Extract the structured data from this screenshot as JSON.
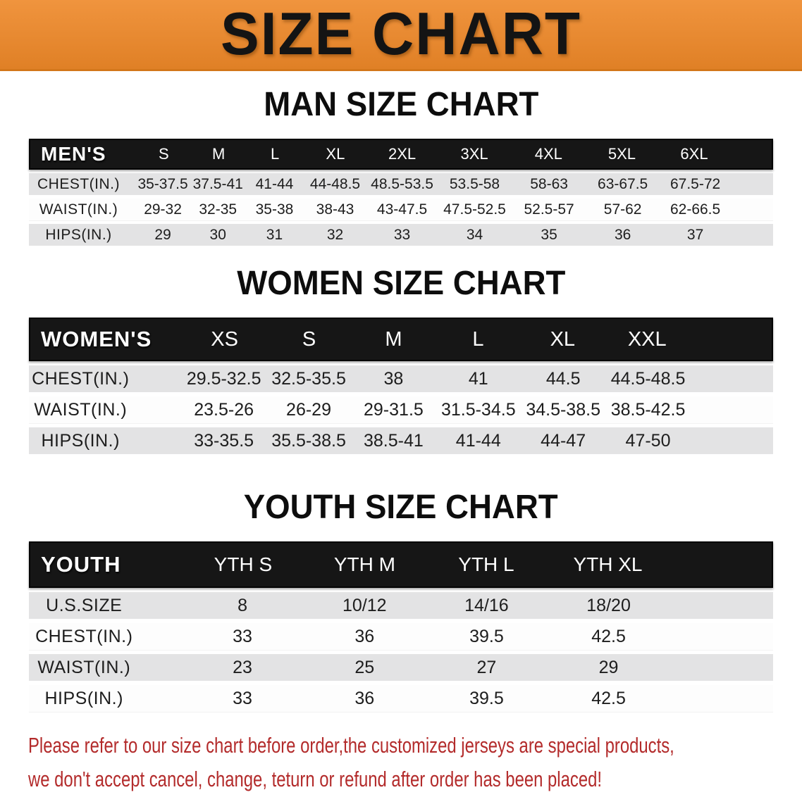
{
  "banner": {
    "title": "SIZE CHART"
  },
  "colors": {
    "banner_bg": "#ee8828",
    "banner_text": "#141414",
    "table_header_bg": "#161616",
    "table_header_text": "#ffffff",
    "row_alt_bg": "#e3e3e4",
    "row_text": "#1d1d1d",
    "disclaimer_text": "#b32b2b"
  },
  "chart_data": [
    {
      "type": "table",
      "title": "MAN SIZE CHART",
      "corner_label": "MEN'S",
      "columns": [
        "S",
        "M",
        "L",
        "XL",
        "2XL",
        "3XL",
        "4XL",
        "5XL",
        "6XL"
      ],
      "rows": [
        {
          "label": "CHEST(IN.)",
          "values": [
            "35-37.5",
            "37.5-41",
            "41-44",
            "44-48.5",
            "48.5-53.5",
            "53.5-58",
            "58-63",
            "63-67.5",
            "67.5-72"
          ]
        },
        {
          "label": "WAIST(IN.)",
          "values": [
            "29-32",
            "32-35",
            "35-38",
            "38-43",
            "43-47.5",
            "47.5-52.5",
            "52.5-57",
            "57-62",
            "62-66.5"
          ]
        },
        {
          "label": "HIPS(IN.)",
          "values": [
            "29",
            "30",
            "31",
            "32",
            "33",
            "34",
            "35",
            "36",
            "37"
          ]
        }
      ]
    },
    {
      "type": "table",
      "title": "WOMEN SIZE CHART",
      "corner_label": "WOMEN'S",
      "columns": [
        "XS",
        "S",
        "M",
        "L",
        "XL",
        "XXL"
      ],
      "rows": [
        {
          "label": "CHEST(IN.)",
          "values": [
            "29.5-32.5",
            "32.5-35.5",
            "38",
            "41",
            "44.5",
            "44.5-48.5"
          ]
        },
        {
          "label": "WAIST(IN.)",
          "values": [
            "23.5-26",
            "26-29",
            "29-31.5",
            "31.5-34.5",
            "34.5-38.5",
            "38.5-42.5"
          ]
        },
        {
          "label": "HIPS(IN.)",
          "values": [
            "33-35.5",
            "35.5-38.5",
            "38.5-41",
            "41-44",
            "44-47",
            "47-50"
          ]
        }
      ]
    },
    {
      "type": "table",
      "title": "YOUTH SIZE CHART",
      "corner_label": "YOUTH",
      "columns": [
        "YTH S",
        "YTH M",
        "YTH L",
        "YTH XL"
      ],
      "rows": [
        {
          "label": "U.S.SIZE",
          "values": [
            "8",
            "10/12",
            "14/16",
            "18/20"
          ]
        },
        {
          "label": "CHEST(IN.)",
          "values": [
            "33",
            "36",
            "39.5",
            "42.5"
          ]
        },
        {
          "label": "WAIST(IN.)",
          "values": [
            "23",
            "25",
            "27",
            "29"
          ]
        },
        {
          "label": "HIPS(IN.)",
          "values": [
            "33",
            "36",
            "39.5",
            "42.5"
          ]
        }
      ]
    }
  ],
  "disclaimer": {
    "line1": "Please refer to our size chart before order,the customized jerseys are special products,",
    "line2": "we don't accept cancel, change, teturn or refund after order has been placed!"
  }
}
